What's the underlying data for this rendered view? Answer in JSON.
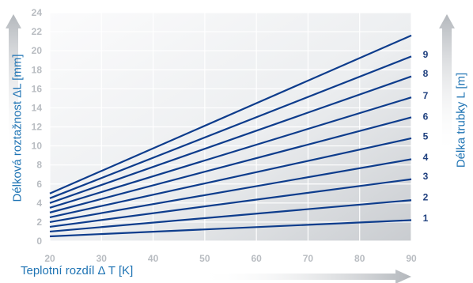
{
  "chart_data": {
    "type": "line",
    "xlabel": "Teplotní rozdíl Δ T [K]",
    "ylabel": "Délková roztažnost ΔL [mm]",
    "y2label": "Délka trubky L [m]",
    "x_ticks": [
      "20",
      "30",
      "40",
      "50",
      "60",
      "70",
      "80",
      "90"
    ],
    "y_ticks": [
      "0",
      "2",
      "4",
      "6",
      "8",
      "10",
      "12",
      "14",
      "16",
      "18",
      "20",
      "22",
      "24"
    ],
    "xlim": [
      20,
      90
    ],
    "ylim": [
      0,
      24
    ],
    "grid": true,
    "series": [
      {
        "name": "1",
        "x": [
          20,
          90
        ],
        "y": [
          0.5,
          2.2
        ]
      },
      {
        "name": "2",
        "x": [
          20,
          90
        ],
        "y": [
          1.0,
          4.3
        ]
      },
      {
        "name": "3",
        "x": [
          20,
          90
        ],
        "y": [
          1.5,
          6.5
        ]
      },
      {
        "name": "4",
        "x": [
          20,
          90
        ],
        "y": [
          2.0,
          8.6
        ]
      },
      {
        "name": "5",
        "x": [
          20,
          90
        ],
        "y": [
          2.5,
          10.8
        ]
      },
      {
        "name": "6",
        "x": [
          20,
          90
        ],
        "y": [
          3.0,
          13.0
        ]
      },
      {
        "name": "7",
        "x": [
          20,
          90
        ],
        "y": [
          3.5,
          15.1
        ]
      },
      {
        "name": "8",
        "x": [
          20,
          90
        ],
        "y": [
          4.0,
          17.3
        ]
      },
      {
        "name": "9",
        "x": [
          20,
          90
        ],
        "y": [
          4.5,
          19.4
        ]
      },
      {
        "name": "",
        "x": [
          20,
          90
        ],
        "y": [
          5.0,
          21.6
        ]
      }
    ],
    "right_labels": [
      "1",
      "2",
      "3",
      "4",
      "5",
      "6",
      "7",
      "8",
      "9"
    ],
    "right_label_y": [
      2.4,
      4.6,
      6.8,
      8.8,
      11.0,
      13.1,
      15.3,
      17.6,
      19.6
    ],
    "colors": {
      "line": "#0d3c8c",
      "grid": "#ffffff",
      "tick": "#b8bcc1",
      "title": "#1f74b4"
    }
  }
}
